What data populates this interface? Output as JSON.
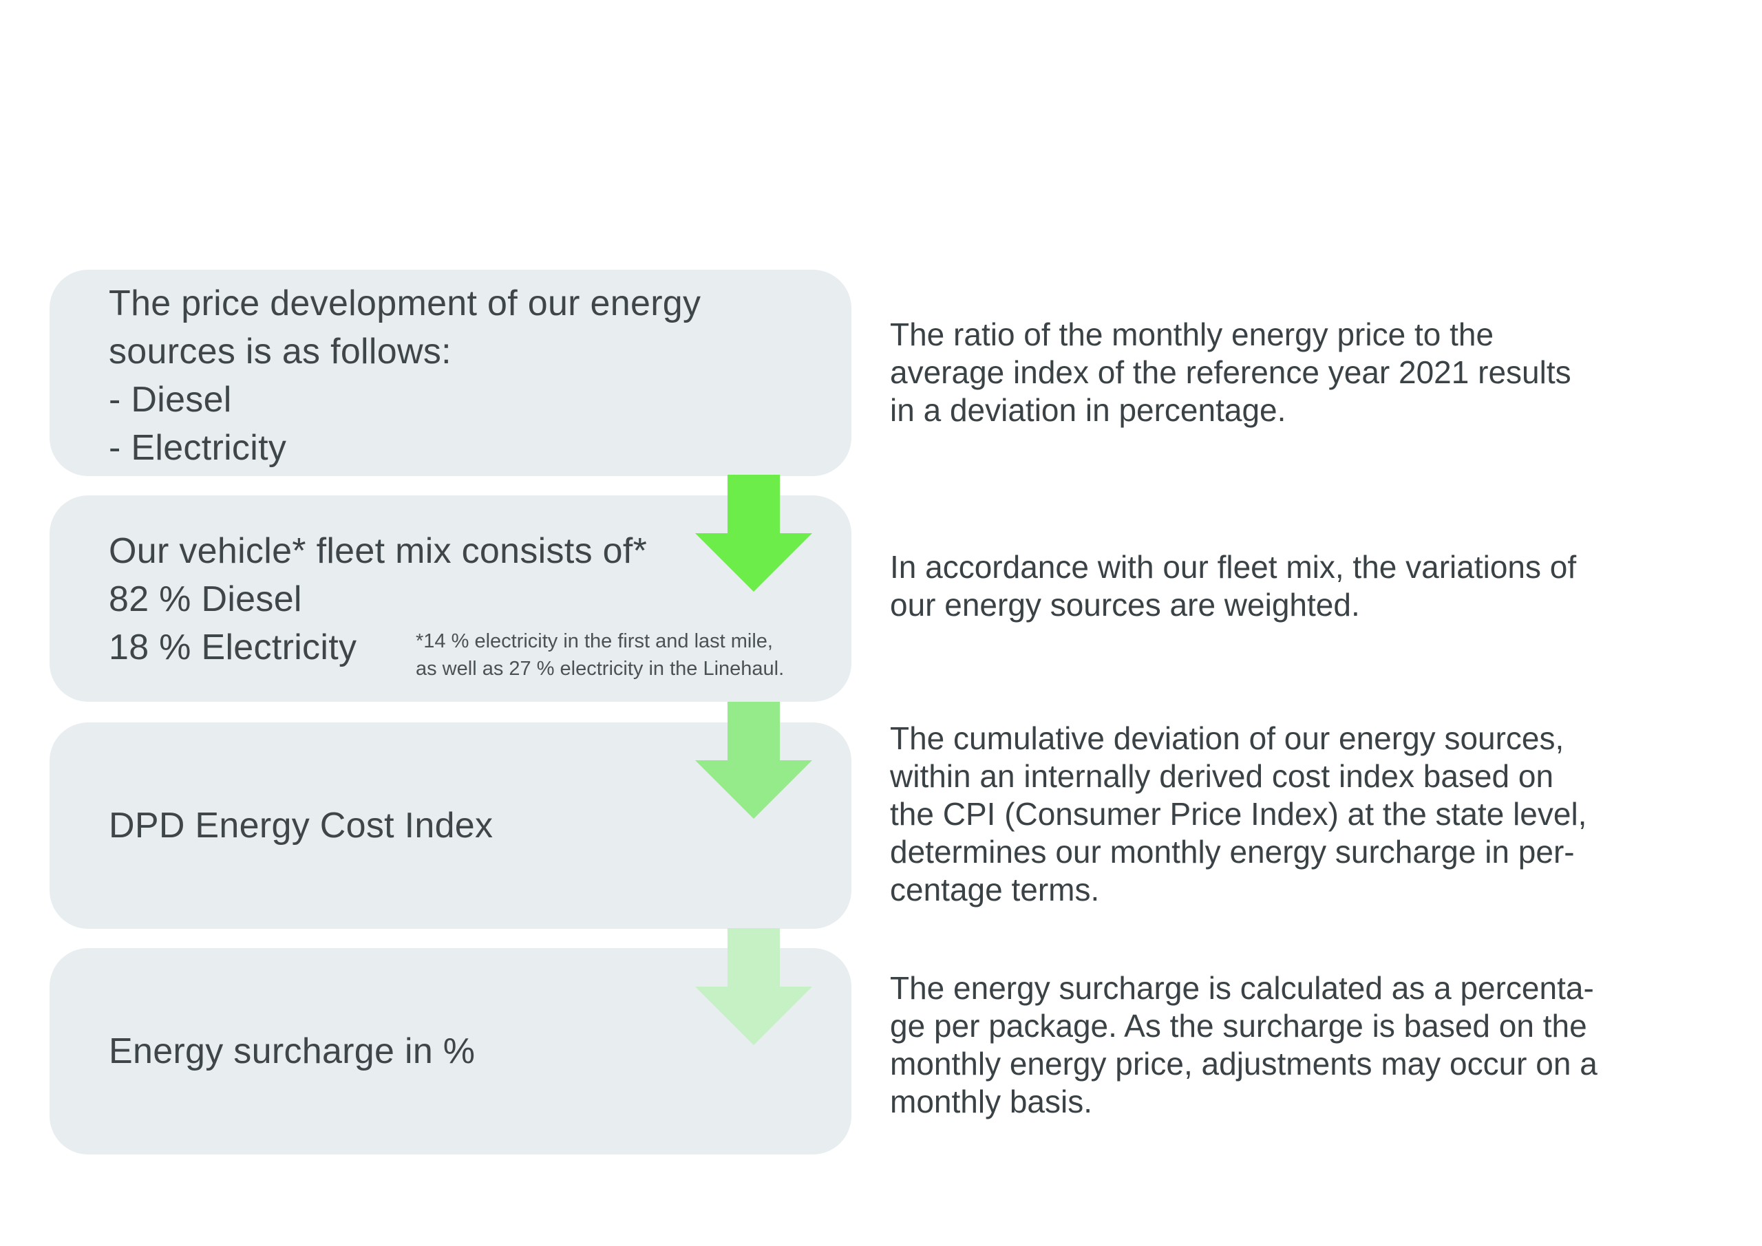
{
  "steps": [
    {
      "lines": [
        "The price development of our energy",
        "sources is as follows:",
        "- Diesel",
        "- Electricity"
      ],
      "description": [
        "The ratio of the monthly energy price to the",
        "average index of the reference year 2021 results",
        "in a deviation in percentage."
      ]
    },
    {
      "lines": [
        "Our vehicle* fleet mix consists of*",
        "82 % Diesel",
        "18 % Electricity"
      ],
      "footnote": [
        "*14 % electricity in the first and last mile,",
        "as well as 27 % electricity in the Linehaul."
      ],
      "description": [
        "In accordance with our fleet mix, the variations of",
        "our energy sources are weighted."
      ]
    },
    {
      "lines": [
        "DPD Energy Cost Index"
      ],
      "description": [
        "The cumulative deviation of our energy sources,",
        "within an internally derived cost index based on",
        "the CPI (Consumer Price Index) at the state level,",
        "determines our monthly energy surcharge in per-",
        "centage terms."
      ]
    },
    {
      "lines": [
        "Energy surcharge in %"
      ],
      "description": [
        "The energy surcharge is calculated as a percenta-",
        "ge per package. As the surcharge is based on the",
        "monthly energy price, adjustments may occur on a",
        "monthly basis."
      ]
    }
  ],
  "colors": {
    "box_background": "#e8edf0",
    "arrow_1": "#6ded4a",
    "arrow_2": "#95ea8a",
    "arrow_3": "#c6f1c4",
    "text": "#3e4649"
  },
  "icons": [
    "arrow-down-icon",
    "arrow-down-icon",
    "arrow-down-icon"
  ]
}
